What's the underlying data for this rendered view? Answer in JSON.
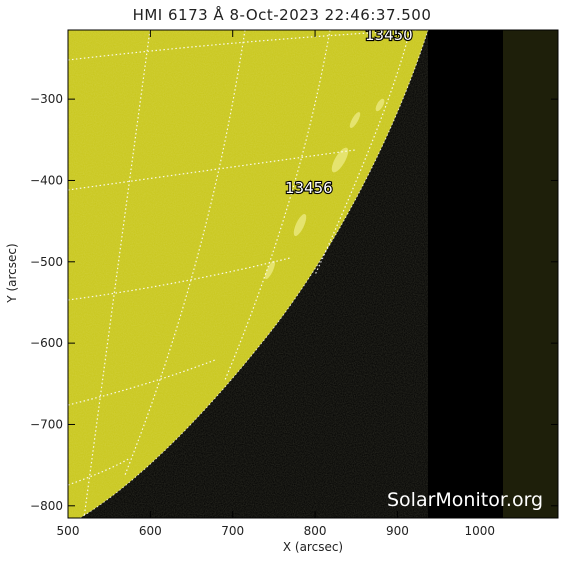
{
  "title": "HMI 6173 Å  8-Oct-2023 22:46:37.500",
  "xaxis": {
    "label": "X (arcsec)",
    "ticks": [
      500,
      600,
      700,
      800,
      900,
      1000
    ],
    "range": [
      500,
      1095
    ]
  },
  "yaxis": {
    "label": "Y (arcsec)",
    "ticks": [
      -300,
      -400,
      -500,
      -600,
      -700,
      -800
    ],
    "range": [
      -815,
      -215
    ]
  },
  "regions": [
    {
      "id": "13450",
      "label": "13450"
    },
    {
      "id": "13456",
      "label": "13456"
    }
  ],
  "watermark": "SolarMonitor.org",
  "colors": {
    "disk": "#c8c61a",
    "space": "#000000",
    "edge_band": "#1e1f0a",
    "grid": "#ffffff",
    "text": "#222222"
  }
}
